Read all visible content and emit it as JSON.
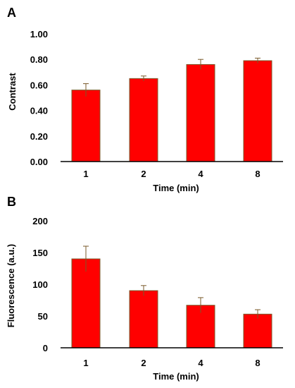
{
  "chart_data": [
    {
      "type": "bar",
      "panel": "A",
      "categories": [
        "1",
        "2",
        "4",
        "8"
      ],
      "values": [
        0.56,
        0.65,
        0.76,
        0.79
      ],
      "errors": [
        0.05,
        0.02,
        0.04,
        0.02
      ],
      "xlabel": "Time (min)",
      "ylabel": "Contrast",
      "ylim": [
        0,
        1.0
      ],
      "yticks": [
        "0.00",
        "0.20",
        "0.40",
        "0.60",
        "0.80",
        "1.00"
      ],
      "ytick_values": [
        0,
        0.2,
        0.4,
        0.6,
        0.8,
        1.0
      ],
      "bar_color": "#ff0000",
      "error_color": "#7a5a2a",
      "grid": false
    },
    {
      "type": "bar",
      "panel": "B",
      "categories": [
        "1",
        "2",
        "4",
        "8"
      ],
      "values": [
        140,
        90,
        67,
        53
      ],
      "errors": [
        20,
        8,
        12,
        7
      ],
      "xlabel": "Time (min)",
      "ylabel": "Fluorescence (a.u.)",
      "ylim": [
        0,
        200
      ],
      "yticks": [
        "0",
        "50",
        "100",
        "150",
        "200"
      ],
      "ytick_values": [
        0,
        50,
        100,
        150,
        200
      ],
      "bar_color": "#ff0000",
      "error_color": "#7a5a2a",
      "grid": false
    }
  ]
}
